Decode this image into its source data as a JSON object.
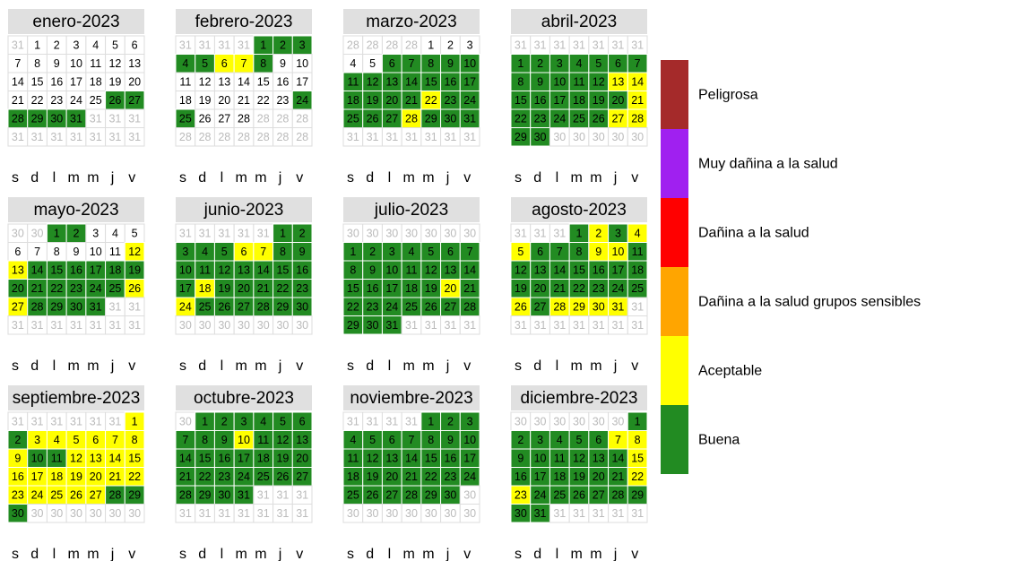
{
  "weekdays": [
    "s",
    "d",
    "l",
    "m",
    "m",
    "j",
    "v"
  ],
  "legend": [
    {
      "label": "Peligrosa",
      "color": "#a52a2a"
    },
    {
      "label": "Muy dañina a la salud",
      "color": "#a020f0"
    },
    {
      "label": "Dañina a la salud",
      "color": "#ff0000"
    },
    {
      "label": "Dañina a la salud grupos sensibles",
      "color": "#ffa500"
    },
    {
      "label": "Aceptable",
      "color": "#ffff00"
    },
    {
      "label": "Buena",
      "color": "#228b22"
    }
  ],
  "months": [
    {
      "title": "enero-2023",
      "days": [
        31,
        1,
        2,
        3,
        4,
        5,
        6,
        7,
        8,
        9,
        10,
        11,
        12,
        13,
        14,
        15,
        16,
        17,
        18,
        19,
        20,
        21,
        22,
        23,
        24,
        25,
        26,
        27,
        28,
        29,
        30,
        31,
        31,
        31,
        31,
        31,
        31,
        31,
        31,
        31,
        31,
        31
      ],
      "colors": [
        null,
        null,
        null,
        null,
        null,
        null,
        null,
        null,
        null,
        null,
        null,
        null,
        null,
        null,
        null,
        null,
        null,
        null,
        null,
        null,
        null,
        null,
        null,
        null,
        null,
        null,
        "#228b22",
        "#228b22",
        "#228b22",
        "#228b22",
        "#228b22",
        "#228b22",
        null,
        null,
        null,
        null,
        null,
        null,
        null,
        null,
        null,
        null
      ]
    },
    {
      "title": "febrero-2023",
      "days": [
        31,
        31,
        31,
        31,
        1,
        2,
        3,
        4,
        5,
        6,
        7,
        8,
        9,
        10,
        11,
        12,
        13,
        14,
        15,
        16,
        17,
        18,
        19,
        20,
        21,
        22,
        23,
        24,
        25,
        26,
        27,
        28,
        28,
        28,
        28,
        28,
        28,
        28,
        28,
        28,
        28,
        28
      ],
      "colors": [
        null,
        null,
        null,
        null,
        "#228b22",
        "#228b22",
        "#228b22",
        "#228b22",
        "#228b22",
        "#ffff00",
        "#ffff00",
        "#228b22",
        null,
        null,
        null,
        null,
        null,
        null,
        null,
        null,
        null,
        null,
        null,
        null,
        null,
        null,
        null,
        "#228b22",
        "#228b22",
        null,
        null,
        null,
        null,
        null,
        null,
        null,
        null,
        null,
        null,
        null,
        null,
        null
      ]
    },
    {
      "title": "marzo-2023",
      "days": [
        28,
        28,
        28,
        28,
        1,
        2,
        3,
        4,
        5,
        6,
        7,
        8,
        9,
        10,
        11,
        12,
        13,
        14,
        15,
        16,
        17,
        18,
        19,
        20,
        21,
        22,
        23,
        24,
        25,
        26,
        27,
        28,
        29,
        30,
        31,
        31,
        31,
        31,
        31,
        31,
        31,
        31
      ],
      "colors": [
        null,
        null,
        null,
        null,
        null,
        null,
        null,
        null,
        null,
        "#228b22",
        "#228b22",
        "#228b22",
        "#228b22",
        "#228b22",
        "#228b22",
        "#228b22",
        "#228b22",
        "#228b22",
        "#228b22",
        "#228b22",
        "#228b22",
        "#228b22",
        "#228b22",
        "#228b22",
        "#228b22",
        "#ffff00",
        "#228b22",
        "#228b22",
        "#228b22",
        "#228b22",
        "#228b22",
        "#ffff00",
        "#228b22",
        "#228b22",
        "#228b22",
        null,
        null,
        null,
        null,
        null,
        null,
        null
      ]
    },
    {
      "title": "abril-2023",
      "days": [
        31,
        31,
        31,
        31,
        31,
        31,
        31,
        1,
        2,
        3,
        4,
        5,
        6,
        7,
        8,
        9,
        10,
        11,
        12,
        13,
        14,
        15,
        16,
        17,
        18,
        19,
        20,
        21,
        22,
        23,
        24,
        25,
        26,
        27,
        28,
        29,
        30,
        30,
        30,
        30,
        30,
        30
      ],
      "colors": [
        null,
        null,
        null,
        null,
        null,
        null,
        null,
        "#228b22",
        "#228b22",
        "#228b22",
        "#228b22",
        "#228b22",
        "#228b22",
        "#228b22",
        "#228b22",
        "#228b22",
        "#228b22",
        "#228b22",
        "#228b22",
        "#ffff00",
        "#ffff00",
        "#228b22",
        "#228b22",
        "#228b22",
        "#228b22",
        "#228b22",
        "#228b22",
        "#ffff00",
        "#228b22",
        "#228b22",
        "#228b22",
        "#228b22",
        "#228b22",
        "#ffff00",
        "#ffff00",
        "#228b22",
        "#228b22",
        null,
        null,
        null,
        null,
        null
      ]
    },
    {
      "title": "mayo-2023",
      "days": [
        30,
        30,
        1,
        2,
        3,
        4,
        5,
        6,
        7,
        8,
        9,
        10,
        11,
        12,
        13,
        14,
        15,
        16,
        17,
        18,
        19,
        20,
        21,
        22,
        23,
        24,
        25,
        26,
        27,
        28,
        29,
        30,
        31,
        31,
        31,
        31,
        31,
        31,
        31,
        31,
        31,
        31
      ],
      "colors": [
        null,
        null,
        "#228b22",
        "#228b22",
        null,
        null,
        null,
        null,
        null,
        null,
        null,
        null,
        null,
        "#ffff00",
        "#ffff00",
        "#228b22",
        "#228b22",
        "#228b22",
        "#228b22",
        "#228b22",
        "#228b22",
        "#228b22",
        "#228b22",
        "#228b22",
        "#228b22",
        "#228b22",
        "#228b22",
        "#ffff00",
        "#ffff00",
        "#228b22",
        "#228b22",
        "#228b22",
        "#228b22",
        null,
        null,
        null,
        null,
        null,
        null,
        null,
        null,
        null
      ]
    },
    {
      "title": "junio-2023",
      "days": [
        31,
        31,
        31,
        31,
        31,
        1,
        2,
        3,
        4,
        5,
        6,
        7,
        8,
        9,
        10,
        11,
        12,
        13,
        14,
        15,
        16,
        17,
        18,
        19,
        20,
        21,
        22,
        23,
        24,
        25,
        26,
        27,
        28,
        29,
        30,
        30,
        30,
        30,
        30,
        30,
        30,
        30
      ],
      "colors": [
        null,
        null,
        null,
        null,
        null,
        "#228b22",
        "#228b22",
        "#228b22",
        "#228b22",
        "#228b22",
        "#ffff00",
        "#ffff00",
        "#228b22",
        "#228b22",
        "#228b22",
        "#228b22",
        "#228b22",
        "#228b22",
        "#228b22",
        "#228b22",
        "#228b22",
        "#228b22",
        "#ffff00",
        "#228b22",
        "#228b22",
        "#228b22",
        "#228b22",
        "#228b22",
        "#ffff00",
        "#228b22",
        "#228b22",
        "#228b22",
        "#228b22",
        "#228b22",
        "#228b22",
        null,
        null,
        null,
        null,
        null,
        null,
        null
      ]
    },
    {
      "title": "julio-2023",
      "days": [
        30,
        30,
        30,
        30,
        30,
        30,
        30,
        1,
        2,
        3,
        4,
        5,
        6,
        7,
        8,
        9,
        10,
        11,
        12,
        13,
        14,
        15,
        16,
        17,
        18,
        19,
        20,
        21,
        22,
        23,
        24,
        25,
        26,
        27,
        28,
        29,
        30,
        31,
        31,
        31,
        31,
        31
      ],
      "colors": [
        null,
        null,
        null,
        null,
        null,
        null,
        null,
        "#228b22",
        "#228b22",
        "#228b22",
        "#228b22",
        "#228b22",
        "#228b22",
        "#228b22",
        "#228b22",
        "#228b22",
        "#228b22",
        "#228b22",
        "#228b22",
        "#228b22",
        "#228b22",
        "#228b22",
        "#228b22",
        "#228b22",
        "#228b22",
        "#228b22",
        "#ffff00",
        "#228b22",
        "#228b22",
        "#228b22",
        "#228b22",
        "#228b22",
        "#228b22",
        "#228b22",
        "#228b22",
        "#228b22",
        "#228b22",
        "#228b22",
        null,
        null,
        null,
        null
      ]
    },
    {
      "title": "agosto-2023",
      "days": [
        31,
        31,
        31,
        1,
        2,
        3,
        4,
        5,
        6,
        7,
        8,
        9,
        10,
        11,
        12,
        13,
        14,
        15,
        16,
        17,
        18,
        19,
        20,
        21,
        22,
        23,
        24,
        25,
        26,
        27,
        28,
        29,
        30,
        31,
        31,
        31,
        31,
        31,
        31,
        31,
        31,
        31
      ],
      "colors": [
        null,
        null,
        null,
        "#228b22",
        "#ffff00",
        "#228b22",
        "#ffff00",
        "#ffff00",
        "#228b22",
        "#228b22",
        "#228b22",
        "#ffff00",
        "#ffff00",
        "#228b22",
        "#228b22",
        "#228b22",
        "#228b22",
        "#228b22",
        "#228b22",
        "#228b22",
        "#228b22",
        "#228b22",
        "#228b22",
        "#228b22",
        "#228b22",
        "#228b22",
        "#228b22",
        "#228b22",
        "#ffff00",
        "#228b22",
        "#ffff00",
        "#ffff00",
        "#ffff00",
        "#ffff00",
        null,
        null,
        null,
        null,
        null,
        null,
        null,
        null
      ]
    },
    {
      "title": "septiembre-2023",
      "days": [
        31,
        31,
        31,
        31,
        31,
        31,
        1,
        2,
        3,
        4,
        5,
        6,
        7,
        8,
        9,
        10,
        11,
        12,
        13,
        14,
        15,
        16,
        17,
        18,
        19,
        20,
        21,
        22,
        23,
        24,
        25,
        26,
        27,
        28,
        29,
        30,
        30,
        30,
        30,
        30,
        30,
        30
      ],
      "colors": [
        null,
        null,
        null,
        null,
        null,
        null,
        "#ffff00",
        "#228b22",
        "#ffff00",
        "#ffff00",
        "#ffff00",
        "#ffff00",
        "#ffff00",
        "#ffff00",
        "#ffff00",
        "#228b22",
        "#228b22",
        "#ffff00",
        "#ffff00",
        "#ffff00",
        "#ffff00",
        "#ffff00",
        "#ffff00",
        "#ffff00",
        "#ffff00",
        "#ffff00",
        "#ffff00",
        "#ffff00",
        "#ffff00",
        "#ffff00",
        "#ffff00",
        "#ffff00",
        "#ffff00",
        "#228b22",
        "#228b22",
        "#228b22",
        null,
        null,
        null,
        null,
        null,
        null
      ]
    },
    {
      "title": "octubre-2023",
      "days": [
        30,
        1,
        2,
        3,
        4,
        5,
        6,
        7,
        8,
        9,
        10,
        11,
        12,
        13,
        14,
        15,
        16,
        17,
        18,
        19,
        20,
        21,
        22,
        23,
        24,
        25,
        26,
        27,
        28,
        29,
        30,
        31,
        31,
        31,
        31,
        31,
        31,
        31,
        31,
        31,
        31,
        31
      ],
      "colors": [
        null,
        "#228b22",
        "#228b22",
        "#228b22",
        "#228b22",
        "#228b22",
        "#228b22",
        "#228b22",
        "#228b22",
        "#228b22",
        "#ffff00",
        "#228b22",
        "#228b22",
        "#228b22",
        "#228b22",
        "#228b22",
        "#228b22",
        "#228b22",
        "#228b22",
        "#228b22",
        "#228b22",
        "#228b22",
        "#228b22",
        "#228b22",
        "#228b22",
        "#228b22",
        "#228b22",
        "#228b22",
        "#228b22",
        "#228b22",
        "#228b22",
        "#228b22",
        null,
        null,
        null,
        null,
        null,
        null,
        null,
        null,
        null,
        null
      ]
    },
    {
      "title": "noviembre-2023",
      "days": [
        31,
        31,
        31,
        31,
        1,
        2,
        3,
        4,
        5,
        6,
        7,
        8,
        9,
        10,
        11,
        12,
        13,
        14,
        15,
        16,
        17,
        18,
        19,
        20,
        21,
        22,
        23,
        24,
        25,
        26,
        27,
        28,
        29,
        30,
        30,
        30,
        30,
        30,
        30,
        30,
        30,
        30
      ],
      "colors": [
        null,
        null,
        null,
        null,
        "#228b22",
        "#228b22",
        "#228b22",
        "#228b22",
        "#228b22",
        "#228b22",
        "#228b22",
        "#228b22",
        "#228b22",
        "#228b22",
        "#228b22",
        "#228b22",
        "#228b22",
        "#228b22",
        "#228b22",
        "#228b22",
        "#228b22",
        "#228b22",
        "#228b22",
        "#228b22",
        "#228b22",
        "#228b22",
        "#228b22",
        "#228b22",
        "#228b22",
        "#228b22",
        "#228b22",
        "#228b22",
        "#228b22",
        "#228b22",
        null,
        null,
        null,
        null,
        null,
        null,
        null,
        null
      ]
    },
    {
      "title": "diciembre-2023",
      "days": [
        30,
        30,
        30,
        30,
        30,
        30,
        1,
        2,
        3,
        4,
        5,
        6,
        7,
        8,
        9,
        10,
        11,
        12,
        13,
        14,
        15,
        16,
        17,
        18,
        19,
        20,
        21,
        22,
        23,
        24,
        25,
        26,
        27,
        28,
        29,
        30,
        31,
        31,
        31,
        31,
        31,
        31
      ],
      "colors": [
        null,
        null,
        null,
        null,
        null,
        null,
        "#228b22",
        "#228b22",
        "#228b22",
        "#228b22",
        "#228b22",
        "#228b22",
        "#ffff00",
        "#ffff00",
        "#228b22",
        "#228b22",
        "#228b22",
        "#228b22",
        "#228b22",
        "#228b22",
        "#ffff00",
        "#228b22",
        "#228b22",
        "#228b22",
        "#228b22",
        "#228b22",
        "#228b22",
        "#ffff00",
        "#ffff00",
        "#228b22",
        "#228b22",
        "#228b22",
        "#228b22",
        "#228b22",
        "#228b22",
        "#228b22",
        "#228b22",
        null,
        null,
        null,
        null,
        null
      ]
    }
  ]
}
